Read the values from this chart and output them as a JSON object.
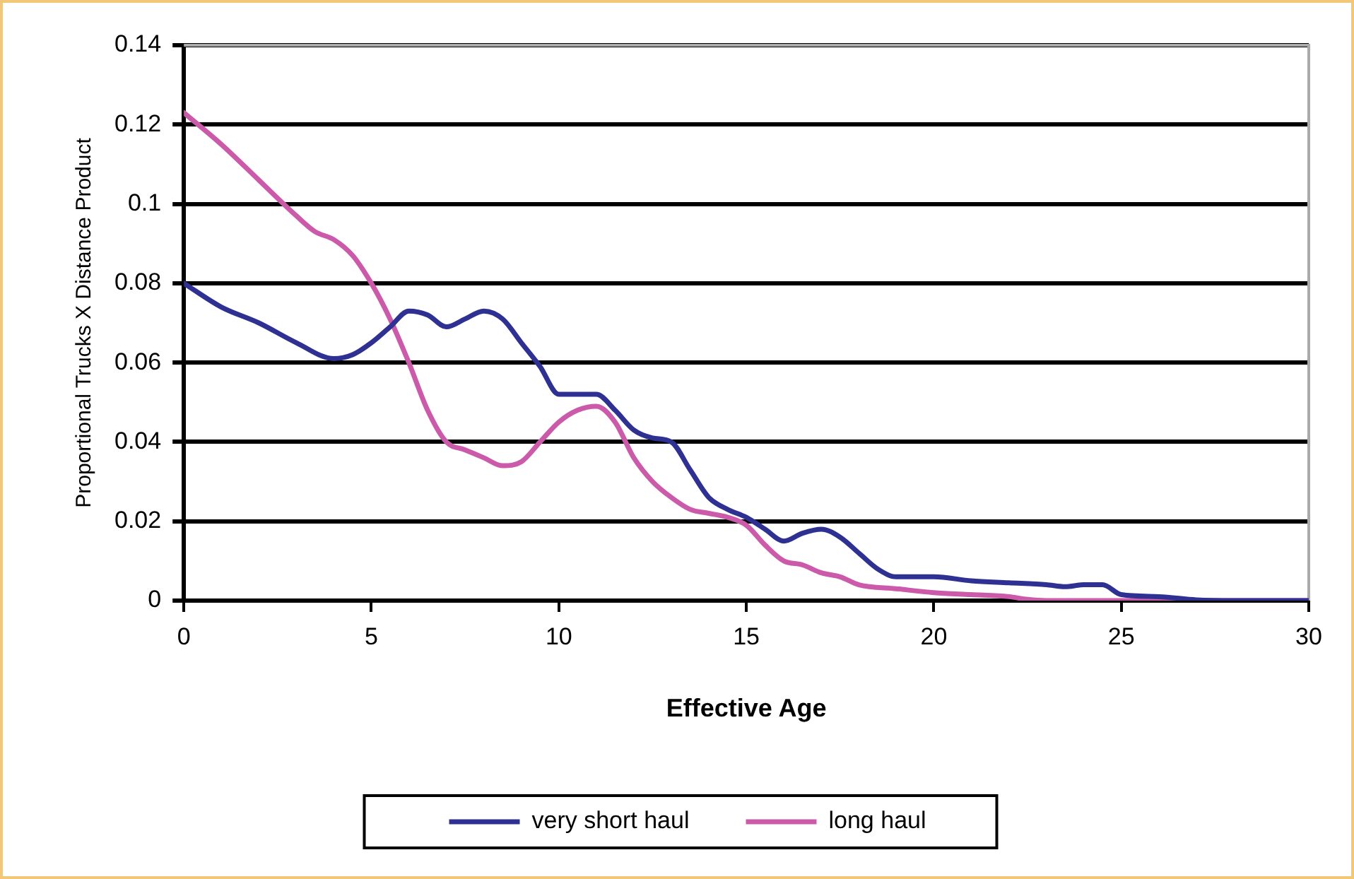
{
  "chart_data": {
    "type": "line",
    "xlabel": "Effective Age",
    "ylabel": "Proportional Trucks X Distance Product",
    "xlim": [
      0,
      30
    ],
    "xticks": [
      0,
      5,
      10,
      15,
      20,
      25,
      30
    ],
    "ylim": [
      0,
      0.14
    ],
    "yticks": [
      0,
      0.02,
      0.04,
      0.06,
      0.08,
      0.1,
      0.12,
      0.14
    ],
    "grid": "y",
    "legend": "bottom",
    "marker": "none",
    "line_style": "solid",
    "series": [
      {
        "name": "very short haul",
        "color": "#2e3192",
        "x": [
          0,
          1,
          2,
          3,
          4,
          4.5,
          5,
          5.5,
          6,
          6.5,
          7,
          7.5,
          8,
          8.5,
          9,
          9.5,
          10,
          10.5,
          11,
          11.5,
          12,
          12.5,
          13,
          13.5,
          14,
          14.5,
          15,
          15.5,
          16,
          16.5,
          17,
          17.5,
          18,
          18.5,
          19,
          20,
          21,
          22,
          23,
          23.5,
          24,
          24.5,
          25,
          26,
          27,
          28,
          30
        ],
        "values": [
          0.08,
          0.074,
          0.07,
          0.065,
          0.061,
          0.062,
          0.065,
          0.069,
          0.073,
          0.072,
          0.069,
          0.071,
          0.073,
          0.071,
          0.065,
          0.059,
          0.052,
          0.052,
          0.052,
          0.048,
          0.043,
          0.041,
          0.04,
          0.033,
          0.026,
          0.023,
          0.021,
          0.018,
          0.015,
          0.017,
          0.018,
          0.016,
          0.012,
          0.008,
          0.006,
          0.006,
          0.005,
          0.0045,
          0.004,
          0.0035,
          0.004,
          0.004,
          0.0015,
          0.001,
          0.0002,
          0,
          0
        ]
      },
      {
        "name": "long haul",
        "color": "#cc5aaa",
        "x": [
          0,
          1,
          2,
          3,
          3.5,
          4,
          4.5,
          5,
          5.5,
          6,
          6.5,
          7,
          7.5,
          8,
          8.5,
          9,
          9.5,
          10,
          10.5,
          11,
          11.5,
          12,
          12.5,
          13,
          13.5,
          14,
          14.5,
          15,
          15.5,
          16,
          16.5,
          17,
          17.5,
          18,
          19,
          20,
          21,
          22,
          22.5,
          23,
          30
        ],
        "values": [
          0.123,
          0.115,
          0.106,
          0.097,
          0.093,
          0.091,
          0.087,
          0.08,
          0.071,
          0.06,
          0.048,
          0.04,
          0.038,
          0.036,
          0.034,
          0.035,
          0.04,
          0.045,
          0.048,
          0.049,
          0.045,
          0.036,
          0.03,
          0.026,
          0.023,
          0.022,
          0.021,
          0.019,
          0.014,
          0.01,
          0.009,
          0.007,
          0.006,
          0.004,
          0.003,
          0.002,
          0.0015,
          0.001,
          0.0003,
          0,
          0
        ]
      }
    ]
  }
}
